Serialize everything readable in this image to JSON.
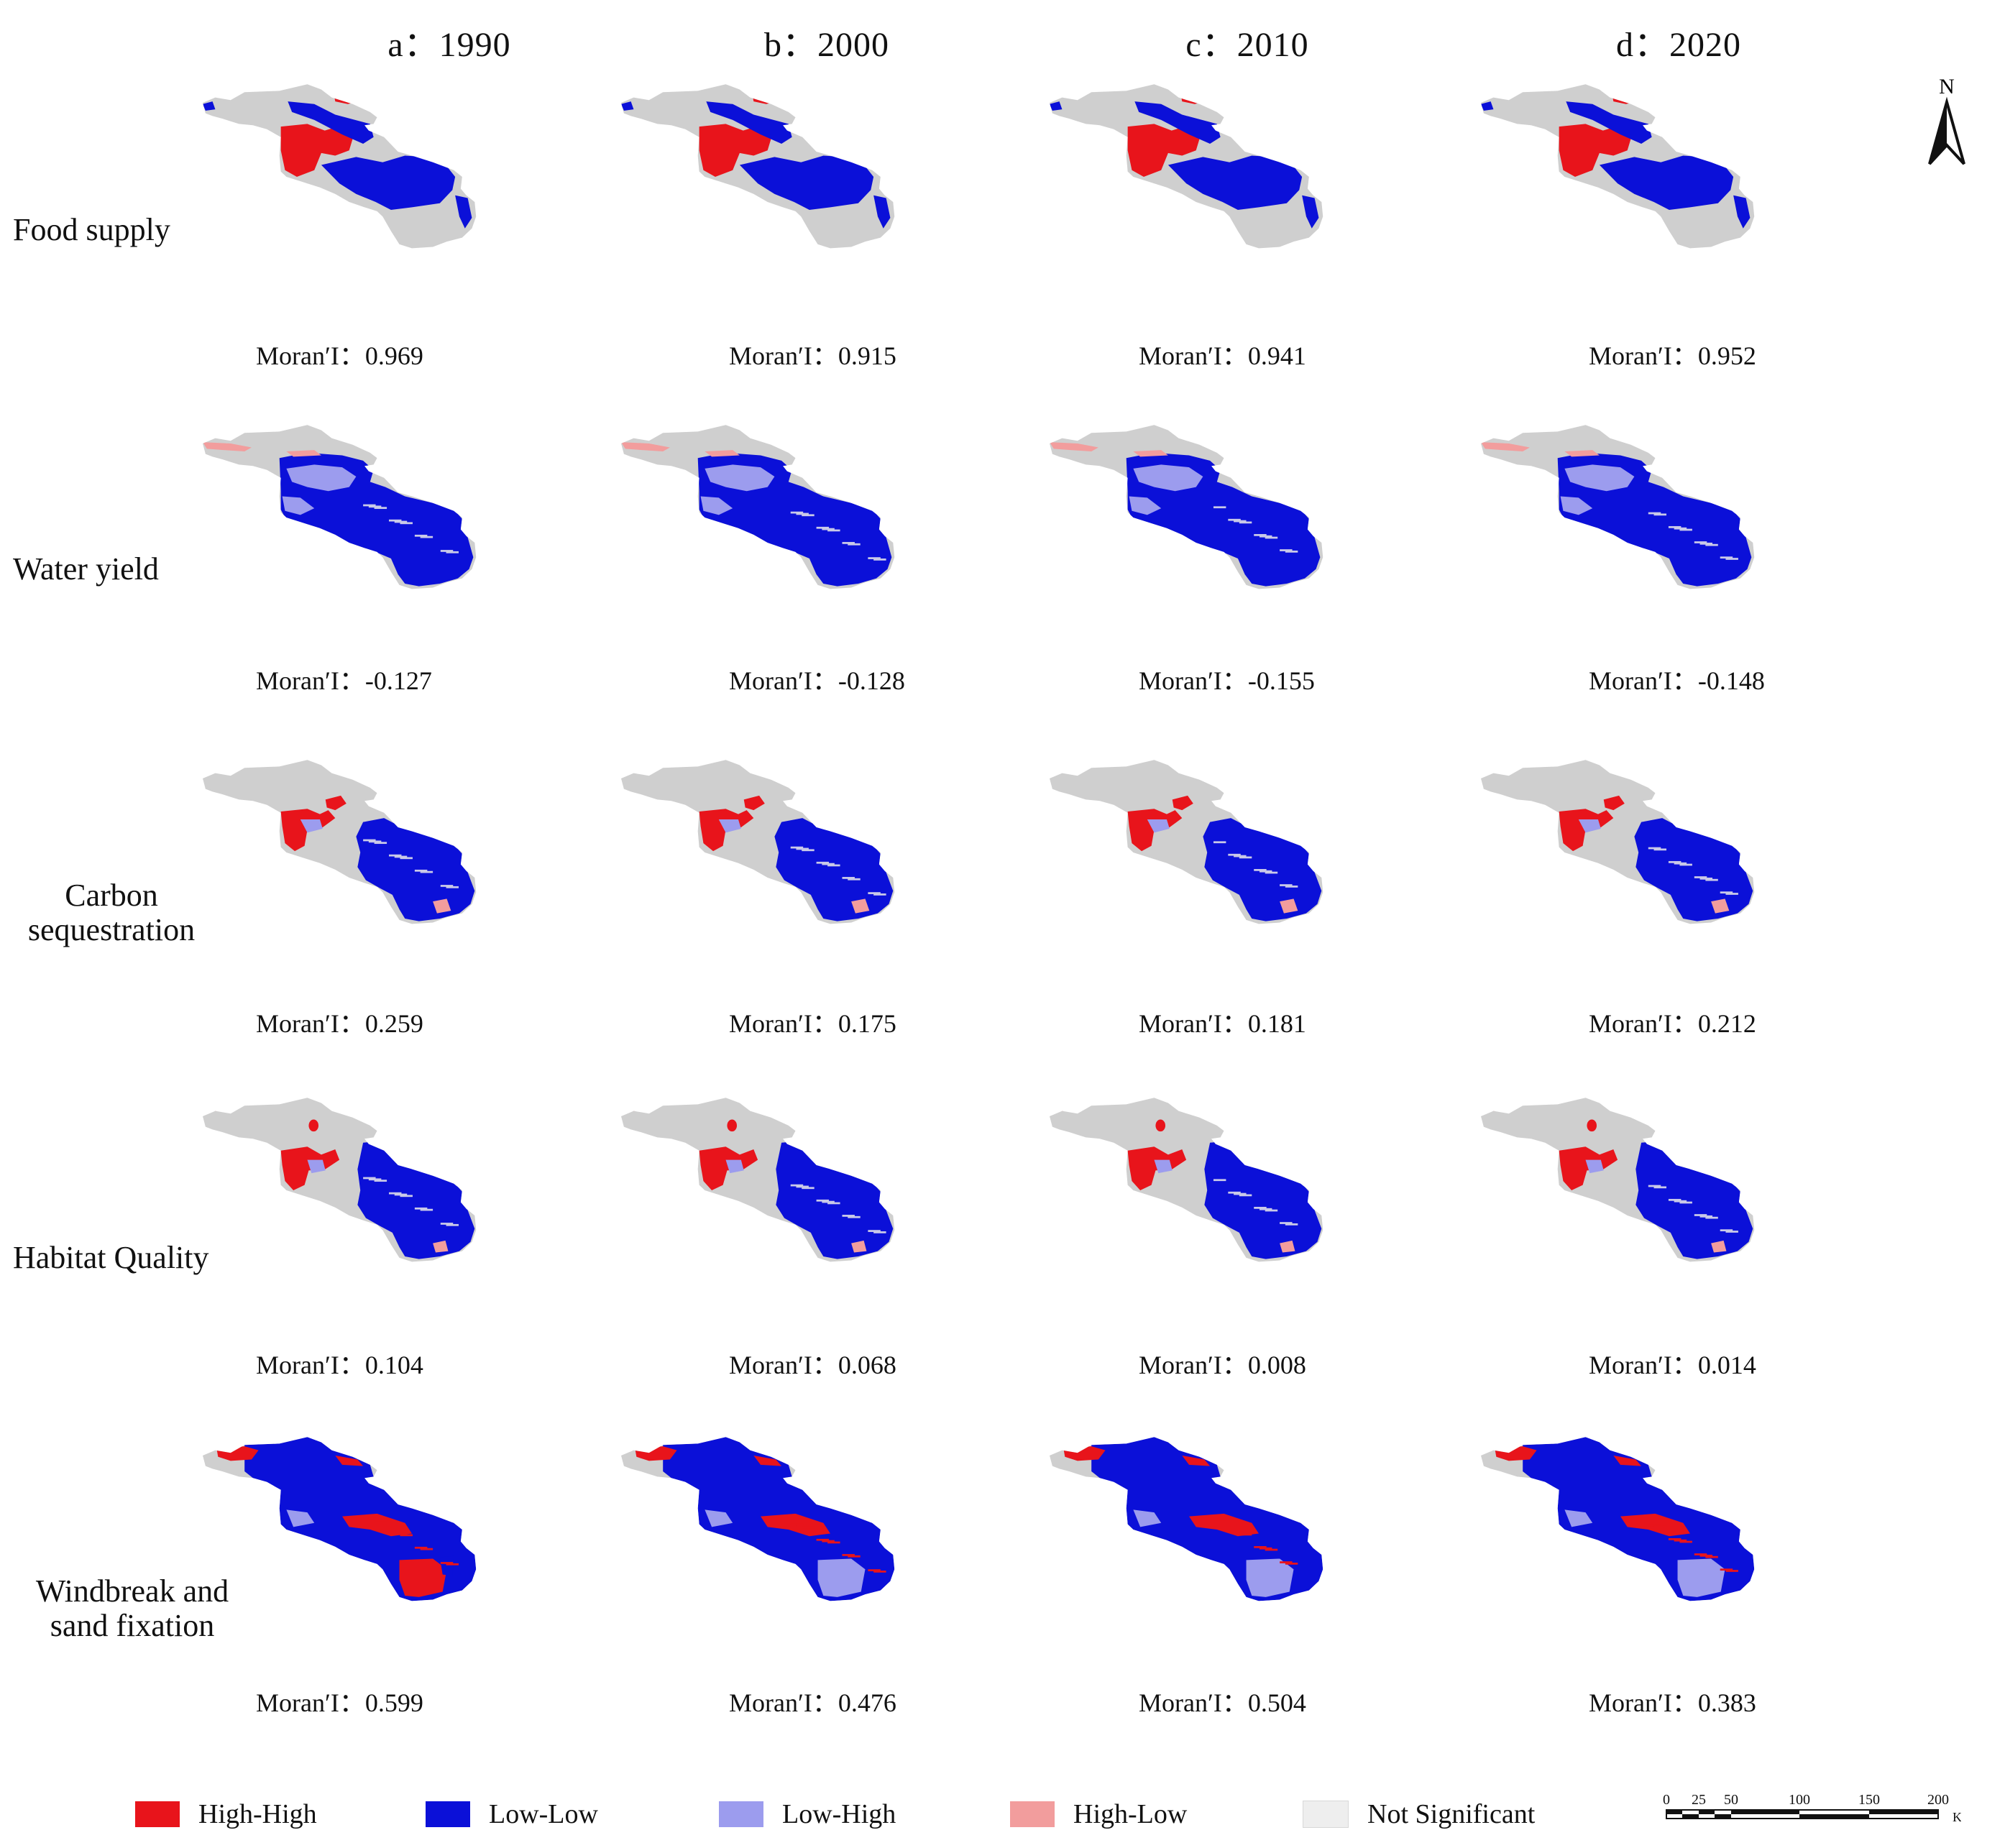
{
  "columns": [
    {
      "prefix": "a：",
      "year": "1990"
    },
    {
      "prefix": "b：",
      "year": "2000"
    },
    {
      "prefix": "c：",
      "year": "2010"
    },
    {
      "prefix": "d：",
      "year": "2020"
    }
  ],
  "rows": [
    {
      "label": "Food supply",
      "moran_label": "Moran′I：",
      "values": [
        "0.969",
        "0.915",
        "0.941",
        "0.952"
      ]
    },
    {
      "label": "Water yield",
      "moran_label": "Moran′I：",
      "values": [
        "-0.127",
        "-0.128",
        "-0.155",
        "-0.148"
      ]
    },
    {
      "label": "Carbon sequestration",
      "moran_label": "Moran′I：",
      "values": [
        "0.259",
        "0.175",
        "0.181",
        "0.212"
      ]
    },
    {
      "label": "Habitat Quality",
      "moran_label": "Moran′I：",
      "values": [
        "0.104",
        "0.068",
        "0.008",
        "0.014"
      ]
    },
    {
      "label": "Windbreak and sand fixation",
      "moran_label": "Moran′I：",
      "values": [
        "0.599",
        "0.476",
        "0.504",
        "0.383"
      ]
    }
  ],
  "legend": [
    {
      "key": "hh",
      "label": "High-High",
      "color": "#e8141b"
    },
    {
      "key": "ll",
      "label": "Low-Low",
      "color": "#0b10d8"
    },
    {
      "key": "lh",
      "label": "Low-High",
      "color": "#9c9cee"
    },
    {
      "key": "hl",
      "label": "High-Low",
      "color": "#f29d9d"
    },
    {
      "key": "ns",
      "label": "Not Significant",
      "color": "#eeeeee"
    }
  ],
  "map_background_color": "#cfcfcf",
  "north_arrow": {
    "label": "N"
  },
  "scale_bar": {
    "ticks": [
      "0",
      "25",
      "50",
      "100",
      "150",
      "200"
    ],
    "unit": "KM"
  }
}
